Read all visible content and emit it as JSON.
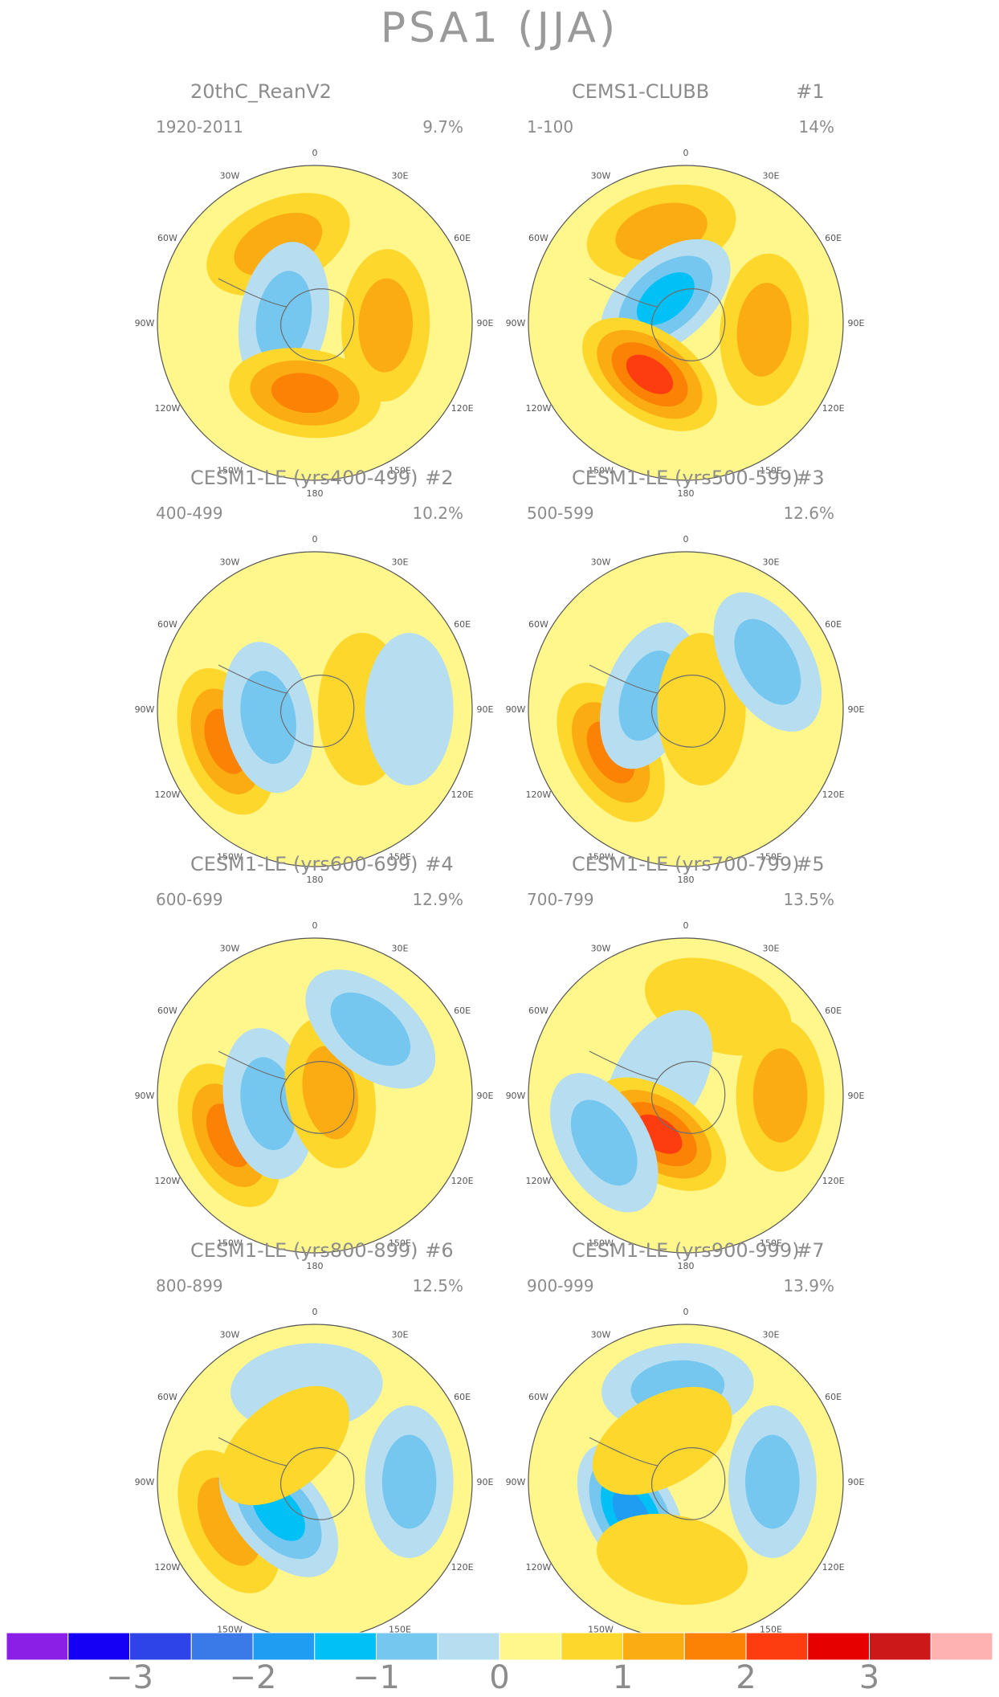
{
  "title": "PSA1 (JJA)",
  "chart_data": {
    "type": "heatmap",
    "title": "PSA1 (JJA)",
    "projection": "south-polar-stereographic",
    "longitude_labels": [
      "0",
      "30E",
      "60E",
      "90E",
      "120E",
      "150E",
      "180",
      "150W",
      "120W",
      "90W",
      "60W",
      "30W"
    ],
    "panels": [
      {
        "title": "20thC_ReanV2",
        "number": "",
        "period": "1920-2011",
        "variance": "9.7%",
        "features": [
          {
            "lon": -25,
            "r": 0.55,
            "sign": "+",
            "level": 2
          },
          {
            "lon": -80,
            "r": 0.2,
            "sign": "-",
            "level": -2
          },
          {
            "lon": 92,
            "r": 0.45,
            "sign": "+",
            "level": 2
          },
          {
            "lon": -172,
            "r": 0.45,
            "sign": "+",
            "level": 3
          }
        ]
      },
      {
        "title": "CEMS1-CLUBB",
        "number": "#1",
        "period": "1-100",
        "variance": "14%",
        "features": [
          {
            "lon": -15,
            "r": 0.6,
            "sign": "+",
            "level": 2
          },
          {
            "lon": -40,
            "r": 0.2,
            "sign": "-",
            "level": -3
          },
          {
            "lon": 95,
            "r": 0.5,
            "sign": "+",
            "level": 2
          },
          {
            "lon": -145,
            "r": 0.4,
            "sign": "+",
            "level": 4
          }
        ]
      },
      {
        "title": "CESM1-LE (yrs400-499)",
        "number": "#2",
        "period": "400-499",
        "variance": "10.2%",
        "features": [
          {
            "lon": -110,
            "r": 0.6,
            "sign": "+",
            "level": 3
          },
          {
            "lon": -100,
            "r": 0.3,
            "sign": "-",
            "level": -2
          },
          {
            "lon": 90,
            "r": 0.3,
            "sign": "+",
            "level": 1
          },
          {
            "lon": 90,
            "r": 0.6,
            "sign": "-",
            "level": -1
          }
        ]
      },
      {
        "title": "CESM1-LE (yrs500-599)",
        "number": "#3",
        "period": "500-599",
        "variance": "12.6%",
        "features": [
          {
            "lon": -120,
            "r": 0.55,
            "sign": "+",
            "level": 3
          },
          {
            "lon": -70,
            "r": 0.25,
            "sign": "-",
            "level": -2
          },
          {
            "lon": 90,
            "r": 0.1,
            "sign": "+",
            "level": 1
          },
          {
            "lon": 60,
            "r": 0.6,
            "sign": "-",
            "level": -2
          }
        ]
      },
      {
        "title": "CESM1-LE (yrs600-699)",
        "number": "#4",
        "period": "600-699",
        "variance": "12.9%",
        "features": [
          {
            "lon": -115,
            "r": 0.6,
            "sign": "+",
            "level": 3
          },
          {
            "lon": -100,
            "r": 0.3,
            "sign": "-",
            "level": -2
          },
          {
            "lon": 80,
            "r": 0.1,
            "sign": "+",
            "level": 2
          },
          {
            "lon": 40,
            "r": 0.55,
            "sign": "-",
            "level": -2
          }
        ]
      },
      {
        "title": "CESM1-LE (yrs700-799)",
        "number": "#5",
        "period": "700-799",
        "variance": "13.5%",
        "features": [
          {
            "lon": 20,
            "r": 0.6,
            "sign": "+",
            "level": 1
          },
          {
            "lon": -60,
            "r": 0.2,
            "sign": "-",
            "level": -1
          },
          {
            "lon": 90,
            "r": 0.6,
            "sign": "+",
            "level": 2
          },
          {
            "lon": -145,
            "r": 0.3,
            "sign": "+",
            "level": 4
          },
          {
            "lon": -120,
            "r": 0.6,
            "sign": "-",
            "level": -2
          }
        ]
      },
      {
        "title": "CESM1-LE (yrs800-899)",
        "number": "#6",
        "period": "800-899",
        "variance": "12.5%",
        "features": [
          {
            "lon": -5,
            "r": 0.6,
            "sign": "-",
            "level": -1
          },
          {
            "lon": -115,
            "r": 0.6,
            "sign": "+",
            "level": 2
          },
          {
            "lon": -130,
            "r": 0.3,
            "sign": "-",
            "level": -3
          },
          {
            "lon": 90,
            "r": 0.6,
            "sign": "-",
            "level": -2
          },
          {
            "lon": -40,
            "r": 0.3,
            "sign": "+",
            "level": 1
          }
        ]
      },
      {
        "title": "CESM1-LE (yrs900-999)",
        "number": "#7",
        "period": "900-999",
        "variance": "13.9%",
        "features": [
          {
            "lon": -5,
            "r": 0.6,
            "sign": "-",
            "level": -2
          },
          {
            "lon": -120,
            "r": 0.4,
            "sign": "-",
            "level": -4
          },
          {
            "lon": 90,
            "r": 0.55,
            "sign": "-",
            "level": -2
          },
          {
            "lon": -170,
            "r": 0.5,
            "sign": "+",
            "level": 1
          },
          {
            "lon": -30,
            "r": 0.3,
            "sign": "+",
            "level": 1
          }
        ]
      }
    ],
    "colorbar": {
      "colors": [
        "#8b1fe6",
        "#1500f5",
        "#2e44e8",
        "#3a7ae8",
        "#1f9df3",
        "#00c0f6",
        "#76c7ef",
        "#b7def0",
        "#fff78c",
        "#fdd72c",
        "#fbac13",
        "#fb8204",
        "#fd3d10",
        "#e60000",
        "#cc1818",
        "#ffb2b2"
      ],
      "tick_labels": [
        "−3",
        "−2",
        "−1",
        "0",
        "1",
        "2",
        "3"
      ],
      "tick_values": [
        -3,
        -2,
        -1,
        0,
        1,
        2,
        3
      ],
      "range": [
        -4,
        4
      ]
    }
  }
}
